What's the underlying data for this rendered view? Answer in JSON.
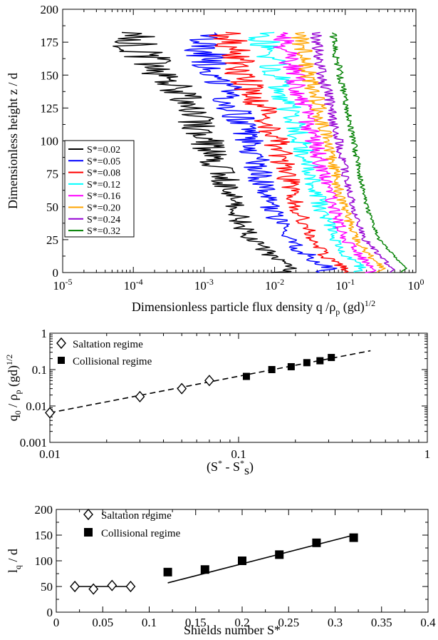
{
  "colors": {
    "series": [
      "#000000",
      "#0000ff",
      "#ff0000",
      "#00ffff",
      "#ff00ff",
      "#ffa500",
      "#9400d3",
      "#008000"
    ]
  },
  "chart_data": [
    {
      "type": "line",
      "xscale": "log",
      "xlim": [
        1e-05,
        1
      ],
      "ylim": [
        0,
        200
      ],
      "xlabel": "Dimensionless particle flux density q /ρ",
      "xlabel_sub": "p",
      "xlabel_tail": " (gd)",
      "xlabel_sup": "1/2",
      "ylabel": "Dimensionless height z / d",
      "x_tick_labels": [
        {
          "base": "10",
          "exp": "-5"
        },
        {
          "base": "10",
          "exp": "-4"
        },
        {
          "base": "10",
          "exp": "-3"
        },
        {
          "base": "10",
          "exp": "-2"
        },
        {
          "base": "10",
          "exp": "-1"
        },
        {
          "base": "10",
          "exp": "0"
        }
      ],
      "y_ticks": [
        "0",
        "25",
        "50",
        "75",
        "100",
        "125",
        "150",
        "175",
        "200"
      ],
      "legend_position": "left-middle",
      "series": [
        {
          "name": "S*=0.02",
          "profile": [
            [
              0,
              0.012
            ],
            [
              3,
              0.018
            ],
            [
              10,
              0.011
            ],
            [
              25,
              0.0045
            ],
            [
              50,
              0.0026
            ],
            [
              75,
              0.0018
            ],
            [
              100,
              0.0011
            ],
            [
              125,
              0.0006
            ],
            [
              150,
              0.00028
            ],
            [
              165,
              0.00015
            ],
            [
              175,
              0.0001
            ],
            [
              183,
              8e-05
            ]
          ]
        },
        {
          "name": "S*=0.05",
          "profile": [
            [
              0,
              0.045
            ],
            [
              3,
              0.06
            ],
            [
              10,
              0.035
            ],
            [
              25,
              0.015
            ],
            [
              50,
              0.0085
            ],
            [
              75,
              0.0062
            ],
            [
              100,
              0.0045
            ],
            [
              125,
              0.0026
            ],
            [
              150,
              0.0016
            ],
            [
              165,
              0.0011
            ],
            [
              175,
              0.0009
            ],
            [
              183,
              0.0009
            ]
          ]
        },
        {
          "name": "S*=0.08",
          "profile": [
            [
              0,
              0.085
            ],
            [
              3,
              0.1
            ],
            [
              10,
              0.06
            ],
            [
              25,
              0.033
            ],
            [
              50,
              0.021
            ],
            [
              75,
              0.0145
            ],
            [
              100,
              0.0105
            ],
            [
              125,
              0.0065
            ],
            [
              150,
              0.0035
            ],
            [
              165,
              0.0027
            ],
            [
              175,
              0.0022
            ],
            [
              183,
              0.0022
            ]
          ]
        },
        {
          "name": "S*=0.12",
          "profile": [
            [
              0,
              0.15
            ],
            [
              3,
              0.18
            ],
            [
              10,
              0.12
            ],
            [
              25,
              0.07
            ],
            [
              50,
              0.045
            ],
            [
              75,
              0.034
            ],
            [
              100,
              0.023
            ],
            [
              125,
              0.016
            ],
            [
              150,
              0.011
            ],
            [
              165,
              0.0085
            ],
            [
              175,
              0.0072
            ],
            [
              183,
              0.0068
            ]
          ]
        },
        {
          "name": "S*=0.16",
          "profile": [
            [
              0,
              0.22
            ],
            [
              3,
              0.26
            ],
            [
              10,
              0.18
            ],
            [
              25,
              0.1
            ],
            [
              50,
              0.068
            ],
            [
              75,
              0.05
            ],
            [
              100,
              0.036
            ],
            [
              125,
              0.027
            ],
            [
              150,
              0.019
            ],
            [
              165,
              0.0155
            ],
            [
              175,
              0.0135
            ],
            [
              183,
              0.013
            ]
          ]
        },
        {
          "name": "S*=0.20",
          "profile": [
            [
              0,
              0.3
            ],
            [
              3,
              0.35
            ],
            [
              10,
              0.25
            ],
            [
              25,
              0.14
            ],
            [
              50,
              0.095
            ],
            [
              75,
              0.072
            ],
            [
              100,
              0.055
            ],
            [
              125,
              0.042
            ],
            [
              150,
              0.031
            ],
            [
              165,
              0.026
            ],
            [
              175,
              0.023
            ],
            [
              183,
              0.022
            ]
          ]
        },
        {
          "name": "S*=0.24",
          "profile": [
            [
              0,
              0.4
            ],
            [
              3,
              0.48
            ],
            [
              10,
              0.34
            ],
            [
              25,
              0.19
            ],
            [
              50,
              0.13
            ],
            [
              75,
              0.1
            ],
            [
              100,
              0.08
            ],
            [
              125,
              0.062
            ],
            [
              150,
              0.048
            ],
            [
              165,
              0.041
            ],
            [
              175,
              0.038
            ],
            [
              183,
              0.036
            ]
          ]
        },
        {
          "name": "S*=0.32",
          "profile": [
            [
              0,
              0.62
            ],
            [
              3,
              0.72
            ],
            [
              10,
              0.55
            ],
            [
              25,
              0.3
            ],
            [
              50,
              0.2
            ],
            [
              75,
              0.16
            ],
            [
              100,
              0.13
            ],
            [
              125,
              0.105
            ],
            [
              150,
              0.085
            ],
            [
              165,
              0.075
            ],
            [
              175,
              0.07
            ],
            [
              183,
              0.068
            ]
          ]
        }
      ]
    },
    {
      "type": "scatter",
      "xscale": "log",
      "yscale": "log",
      "xlim": [
        0.01,
        1
      ],
      "ylim": [
        0.001,
        1
      ],
      "x_ticks": [
        "0.01",
        "0.1",
        "1"
      ],
      "y_ticks": [
        "0.001",
        "0.01",
        "0.1",
        "1"
      ],
      "ylabel": {
        "a": "q",
        "a_sub": "0",
        "b": " / ρ",
        "b_sub": "p",
        "c": " (gd)",
        "c_sup": "1/2"
      },
      "xlabel": {
        "a": "(S",
        "a_sup": "*",
        "b": " - S",
        "b_sup": "*",
        "b_sub": "s",
        "c": ")"
      },
      "legend_position": "top-left",
      "series": [
        {
          "name": "Saltation regime",
          "marker": "open-diamond",
          "x": [
            0.01,
            0.03,
            0.05,
            0.07
          ],
          "y": [
            0.0065,
            0.018,
            0.03,
            0.05
          ]
        },
        {
          "name": "Collisional regime",
          "marker": "filled-square",
          "x": [
            0.11,
            0.15,
            0.19,
            0.23,
            0.27,
            0.31
          ],
          "y": [
            0.065,
            0.1,
            0.12,
            0.155,
            0.175,
            0.215
          ]
        }
      ],
      "fit_line": {
        "style": "dashed",
        "x": [
          0.01,
          0.5
        ],
        "y": [
          0.0065,
          0.33
        ]
      }
    },
    {
      "type": "scatter",
      "xlim": [
        0,
        0.4
      ],
      "ylim": [
        0,
        200
      ],
      "x_ticks": [
        "0",
        "0.05",
        "0.1",
        "0.15",
        "0.2",
        "0.25",
        "0.3",
        "0.35",
        "0.4"
      ],
      "y_ticks": [
        "0",
        "50",
        "100",
        "150",
        "200"
      ],
      "xlabel": "Shields number S*",
      "ylabel": {
        "a": "l",
        "a_sub": "q",
        "b": " / d"
      },
      "legend_position": "top-left",
      "series": [
        {
          "name": "Saltation regime",
          "marker": "open-diamond",
          "x": [
            0.02,
            0.04,
            0.06,
            0.08
          ],
          "y": [
            50,
            45,
            52,
            50
          ]
        },
        {
          "name": "Collisional regime",
          "marker": "filled-square",
          "x": [
            0.12,
            0.16,
            0.2,
            0.24,
            0.28,
            0.32
          ],
          "y": [
            78,
            83,
            100,
            112,
            135,
            145
          ]
        }
      ],
      "fit_lines": [
        {
          "style": "solid",
          "x": [
            0.02,
            0.08
          ],
          "y": [
            50,
            50
          ]
        },
        {
          "style": "solid",
          "x": [
            0.12,
            0.32
          ],
          "y": [
            57,
            150
          ]
        }
      ]
    }
  ]
}
